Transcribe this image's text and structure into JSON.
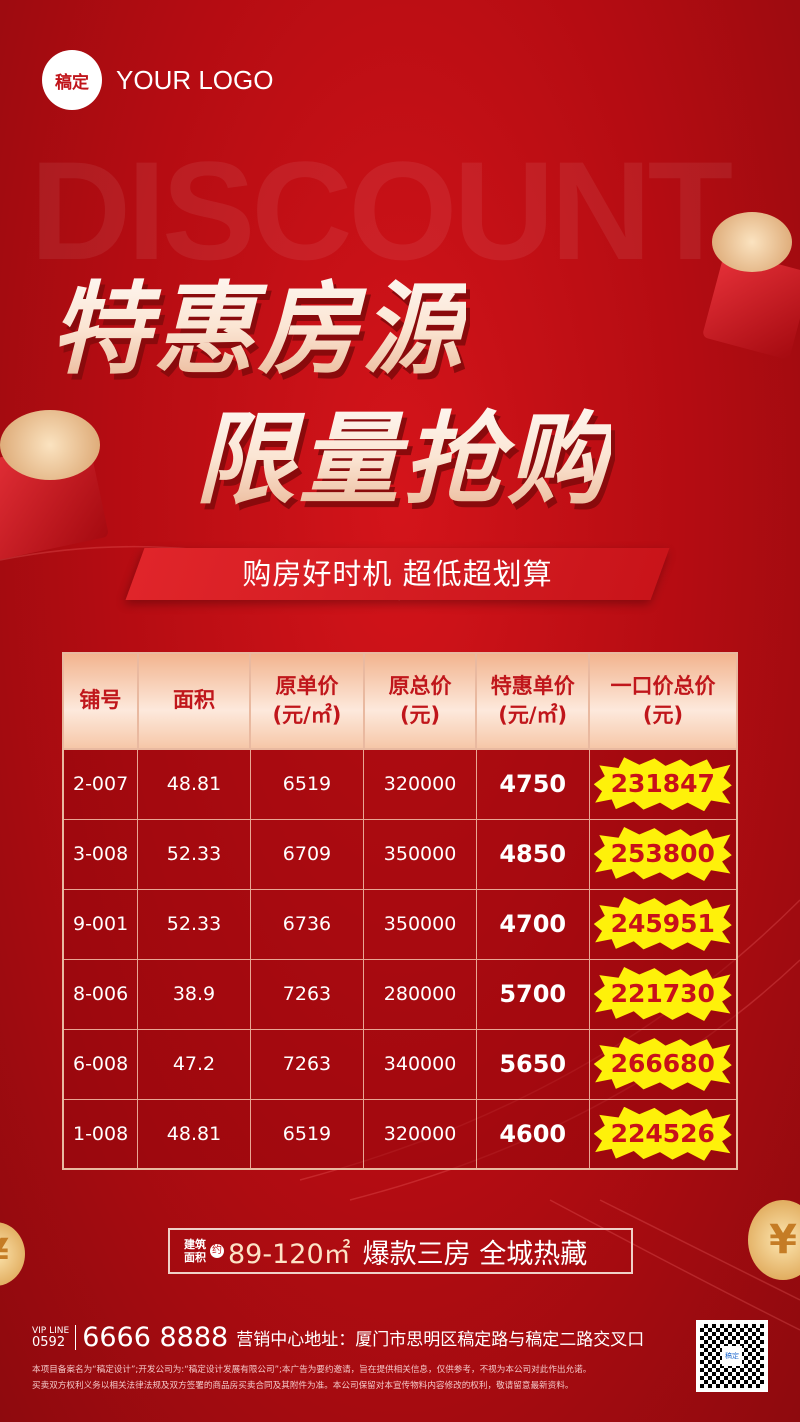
{
  "logo": {
    "badge": "稿定",
    "text": "YOUR LOGO"
  },
  "watermark": "DISCOUNT",
  "title": {
    "line1": "特惠房源",
    "line2": "限量抢购"
  },
  "slogan": "购房好时机  超低超划算",
  "table": {
    "headers": [
      [
        "铺号",
        ""
      ],
      [
        "面积",
        ""
      ],
      [
        "原单价",
        "(元/㎡)"
      ],
      [
        "原总价",
        "(元)"
      ],
      [
        "特惠单价",
        "(元/㎡)"
      ],
      [
        "一口价总价",
        "(元)"
      ]
    ],
    "rows": [
      [
        "2-007",
        "48.81",
        "6519",
        "320000",
        "4750",
        "231847"
      ],
      [
        "3-008",
        "52.33",
        "6709",
        "350000",
        "4850",
        "253800"
      ],
      [
        "9-001",
        "52.33",
        "6736",
        "350000",
        "4700",
        "245951"
      ],
      [
        "8-006",
        "38.9",
        "7263",
        "280000",
        "5700",
        "221730"
      ],
      [
        "6-008",
        "47.2",
        "7263",
        "340000",
        "5650",
        "266680"
      ],
      [
        "1-008",
        "48.81",
        "6519",
        "320000",
        "4600",
        "224526"
      ]
    ]
  },
  "area_banner": {
    "label1": "建筑",
    "label2": "面积",
    "yue": "约",
    "range": "89-120㎡",
    "text": "爆款三房 全城热藏"
  },
  "footer": {
    "vip_line": "VIP LINE",
    "area_code": "0592",
    "phone": "6666 8888",
    "address": "营销中心地址：厦门市思明区稿定路与稿定二路交叉口",
    "qr_label": "稿定",
    "disclaimer1": "本项目备案名为“稿定设计”;开发公司为:“稿定设计发展有限公司”;本广告为要约邀请，旨在提供相关信息，仅供参考，不视为本公司对此作出允诺。",
    "disclaimer2": "买卖双方权利义务以相关法律法规及双方签署的商品房买卖合同及其附件为准。本公司保留对本宣传物料内容修改的权利，敬请留意最新资料。"
  },
  "colors": {
    "background": "#b80d12",
    "highlight": "#fef10a",
    "header_text": "#c0161b"
  }
}
